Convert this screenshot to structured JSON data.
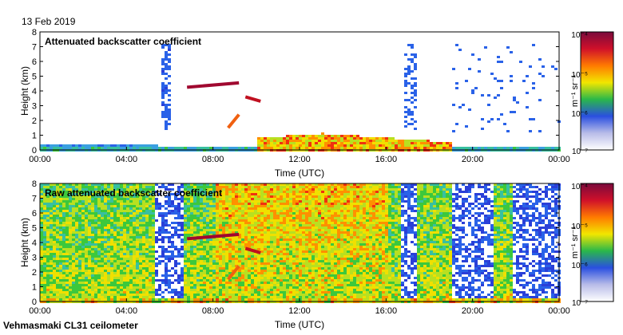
{
  "date": "13 Feb 2019",
  "instrument": "Vehmasmaki CL31 ceilometer",
  "colorbar": {
    "unit": "m⁻¹ sr⁻¹",
    "tick_labels": [
      "10⁻⁴",
      "10⁻⁵",
      "10⁻⁶",
      "10⁻⁷"
    ],
    "gradient": [
      "#7a0a3c",
      "#d0102a",
      "#ff7a00",
      "#f2e600",
      "#2ab84a",
      "#2a4fe0",
      "#b8bce8",
      "#ffffff"
    ]
  },
  "chart_data": [
    {
      "type": "heatmap",
      "title": "Attenuated backscatter coefficient",
      "xlabel": "Time (UTC)",
      "ylabel": "Height (km)",
      "x_tick_labels": [
        "00:00",
        "04:00",
        "08:00",
        "12:00",
        "16:00",
        "20:00",
        "00:00"
      ],
      "x_ticks_hours": [
        0,
        4,
        8,
        12,
        16,
        20,
        24
      ],
      "y_ticks": [
        0,
        1,
        2,
        3,
        4,
        5,
        6,
        7,
        8
      ],
      "xlim_hours": [
        0,
        24
      ],
      "ylim_km": [
        0,
        8
      ],
      "color_scale": {
        "min": 1e-07,
        "max": 0.0001,
        "log": true,
        "unit": "m-1 sr-1"
      }
    },
    {
      "type": "heatmap",
      "title": "Raw attenuated backscatter coefficient",
      "xlabel": "Time (UTC)",
      "ylabel": "Height (km)",
      "x_tick_labels": [
        "00:00",
        "04:00",
        "08:00",
        "12:00",
        "16:00",
        "20:00",
        "00:00"
      ],
      "x_ticks_hours": [
        0,
        4,
        8,
        12,
        16,
        20,
        24
      ],
      "y_ticks": [
        0,
        1,
        2,
        3,
        4,
        5,
        6,
        7,
        8
      ],
      "xlim_hours": [
        0,
        24
      ],
      "ylim_km": [
        0,
        8
      ],
      "color_scale": {
        "min": 1e-07,
        "max": 0.0001,
        "log": true,
        "unit": "m-1 sr-1"
      }
    }
  ]
}
